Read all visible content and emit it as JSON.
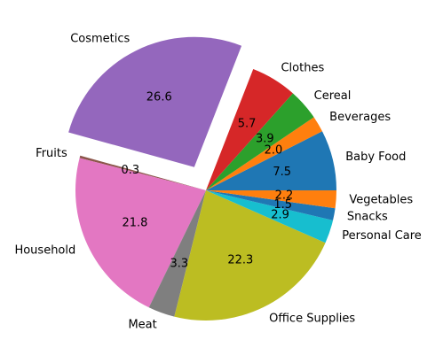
{
  "chart_data": {
    "type": "pie",
    "title": "",
    "categories": [
      "Baby Food",
      "Beverages",
      "Cereal",
      "Clothes",
      "Cosmetics",
      "Fruits",
      "Household",
      "Meat",
      "Office Supplies",
      "Personal Care",
      "Snacks",
      "Vegetables"
    ],
    "values": [
      7.5,
      2.0,
      3.9,
      5.7,
      26.6,
      0.3,
      21.8,
      3.3,
      22.3,
      2.9,
      1.5,
      2.2
    ],
    "value_labels": [
      "7.5",
      "2.0",
      "3.9",
      "5.7",
      "26.6",
      "0.3",
      "21.8",
      "3.3",
      "22.3",
      "2.9",
      "1.5",
      "2.2"
    ],
    "exploded": [
      "Cosmetics"
    ],
    "colors": [
      "#1f77b4",
      "#ff7f0e",
      "#2ca02c",
      "#d62728",
      "#9467bd",
      "#8c564b",
      "#e377c2",
      "#7f7f7f",
      "#bcbd22",
      "#17becf",
      "#1f77b4",
      "#ff7f0e"
    ],
    "legend": "none"
  }
}
